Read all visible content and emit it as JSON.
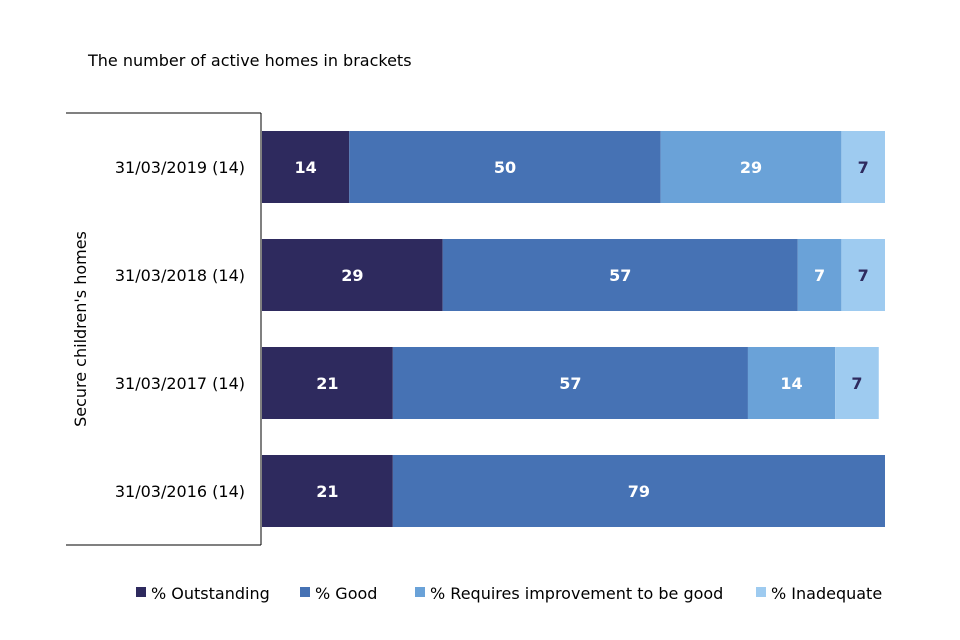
{
  "chart_data": {
    "type": "bar",
    "orientation": "horizontal",
    "stacked": true,
    "subtitle": "The number of active homes in brackets",
    "group_label": "Secure children's homes",
    "categories": [
      "31/03/2019 (14)",
      "31/03/2018 (14)",
      "31/03/2017 (14)",
      "31/03/2016 (14)"
    ],
    "series": [
      {
        "name": "% Outstanding",
        "color": "#2e2a5e",
        "label_color": "#ffffff",
        "values": [
          14,
          29,
          21,
          21
        ]
      },
      {
        "name": "% Good",
        "color": "#4672b4",
        "label_color": "#ffffff",
        "values": [
          50,
          57,
          57,
          79
        ]
      },
      {
        "name": "% Requires improvement to be good",
        "color": "#6aa2d8",
        "label_color": "#ffffff",
        "values": [
          29,
          7,
          14,
          0
        ]
      },
      {
        "name": "% Inadequate",
        "color": "#9ecbf0",
        "label_color": "#2e2a5e",
        "values": [
          7,
          7,
          7,
          0
        ]
      }
    ],
    "xlim": [
      0,
      100
    ],
    "legend_position": "bottom"
  }
}
